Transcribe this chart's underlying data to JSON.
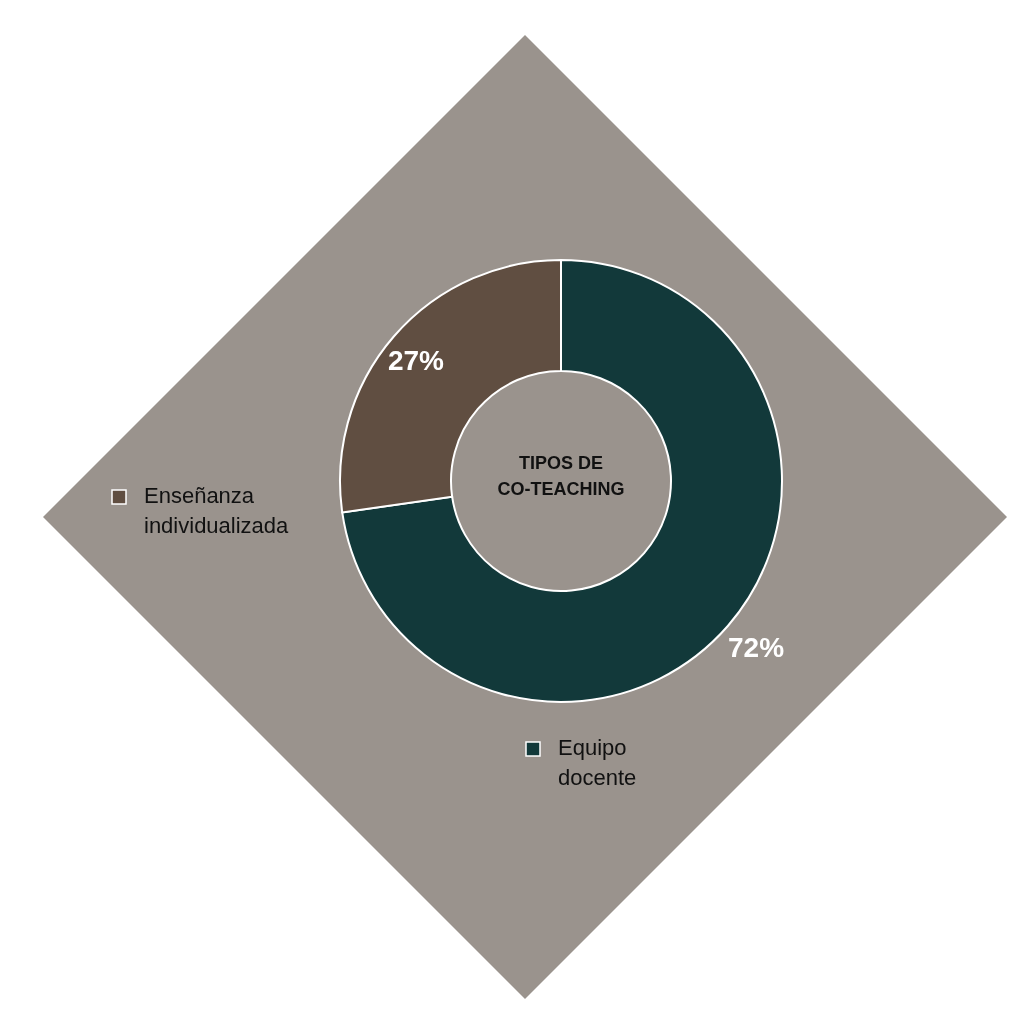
{
  "chart_data": {
    "type": "donut",
    "title": "TIPOS DE CO-TEACHING",
    "categories": [
      "Equipo docente",
      "Enseñanza individualizada"
    ],
    "values": [
      72,
      27
    ],
    "colors": [
      "#12393a",
      "#604e41"
    ],
    "value_labels": [
      "72%",
      "27%"
    ],
    "legend": "left"
  }
}
